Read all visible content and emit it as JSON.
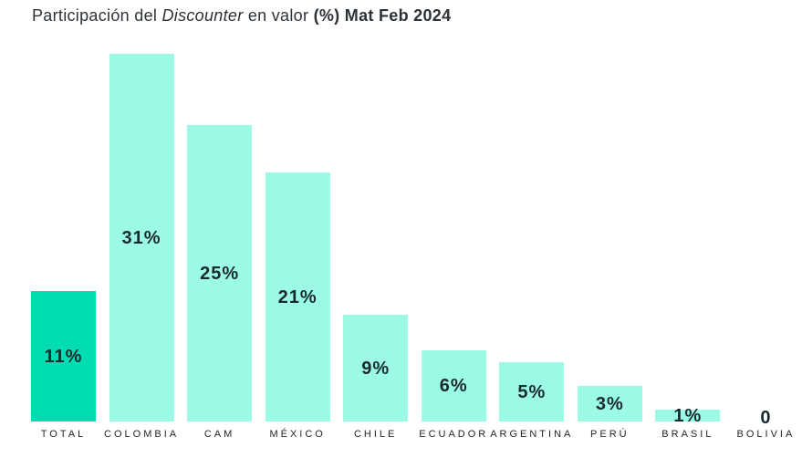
{
  "title": {
    "part1": "Participación del ",
    "part2": "Discounter",
    "part3": "  en valor ",
    "part4": "(%)",
    "part5": " Mat Feb 2024"
  },
  "colors": {
    "highlight_bar": "#00dcb2",
    "bar": "#9bfbe4",
    "value_label": "#192a2e",
    "category_label": "#1f2327",
    "title": "#2d3237",
    "background": "#ffffff"
  },
  "chart_data": {
    "type": "bar",
    "title": "Participación del Discounter en valor (%) Mat Feb 2024",
    "categories": [
      "TOTAL",
      "COLOMBIA",
      "CAM",
      "MÉXICO",
      "CHILE",
      "ECUADOR",
      "ARGENTINA",
      "PERÚ",
      "BRASIL",
      "BOLIVIA"
    ],
    "values": [
      11,
      31,
      25,
      21,
      9,
      6,
      5,
      3,
      1,
      0
    ],
    "value_labels": [
      "11%",
      "31%",
      "25%",
      "21%",
      "9%",
      "6%",
      "5%",
      "3%",
      "1%",
      "0"
    ],
    "unit": "%",
    "highlighted_index": 0,
    "xlabel": "",
    "ylabel": "",
    "ylim": [
      0,
      31
    ],
    "grid": false,
    "legend": false,
    "axis_lines": false
  }
}
